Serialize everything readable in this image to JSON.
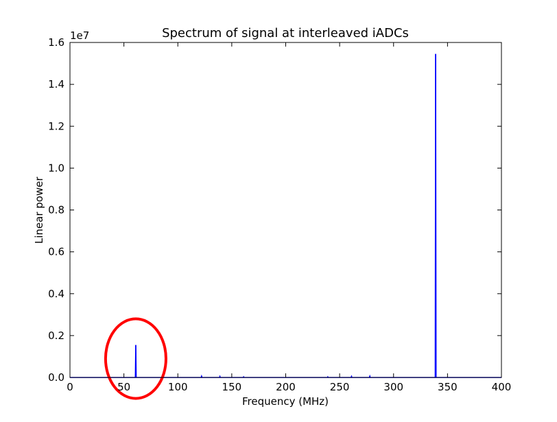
{
  "chart_data": {
    "type": "line",
    "title": "Spectrum of signal at interleaved iADCs",
    "xlabel": "Frequency (MHz)",
    "ylabel": "Linear power",
    "y_offset_label": "1e7",
    "y_scale_factor": 10000000,
    "xlim": [
      0,
      400
    ],
    "ylim": [
      0,
      16000000
    ],
    "x_ticks": [
      0,
      50,
      100,
      150,
      200,
      250,
      300,
      350,
      400
    ],
    "x_tick_labels": [
      "0",
      "50",
      "100",
      "150",
      "200",
      "250",
      "300",
      "350",
      "400"
    ],
    "y_ticks": [
      0,
      2000000,
      4000000,
      6000000,
      8000000,
      10000000,
      12000000,
      14000000,
      16000000
    ],
    "y_tick_labels": [
      "0.0",
      "0.2",
      "0.4",
      "0.6",
      "0.8",
      "1.0",
      "1.2",
      "1.4",
      "1.6"
    ],
    "grid": false,
    "series": [
      {
        "color": "#0000ff",
        "peaks": [
          {
            "x": 61,
            "y": 1550000
          },
          {
            "x": 122,
            "y": 60000
          },
          {
            "x": 139,
            "y": 50000
          },
          {
            "x": 161,
            "y": 30000
          },
          {
            "x": 239,
            "y": 30000
          },
          {
            "x": 261,
            "y": 50000
          },
          {
            "x": 278,
            "y": 60000
          },
          {
            "x": 339,
            "y": 15450000
          }
        ]
      }
    ],
    "annotations": [
      {
        "type": "ellipse",
        "color": "#ff0000",
        "cx": 61,
        "cy": 900000,
        "rx": 28,
        "ry": 1900000
      }
    ]
  }
}
